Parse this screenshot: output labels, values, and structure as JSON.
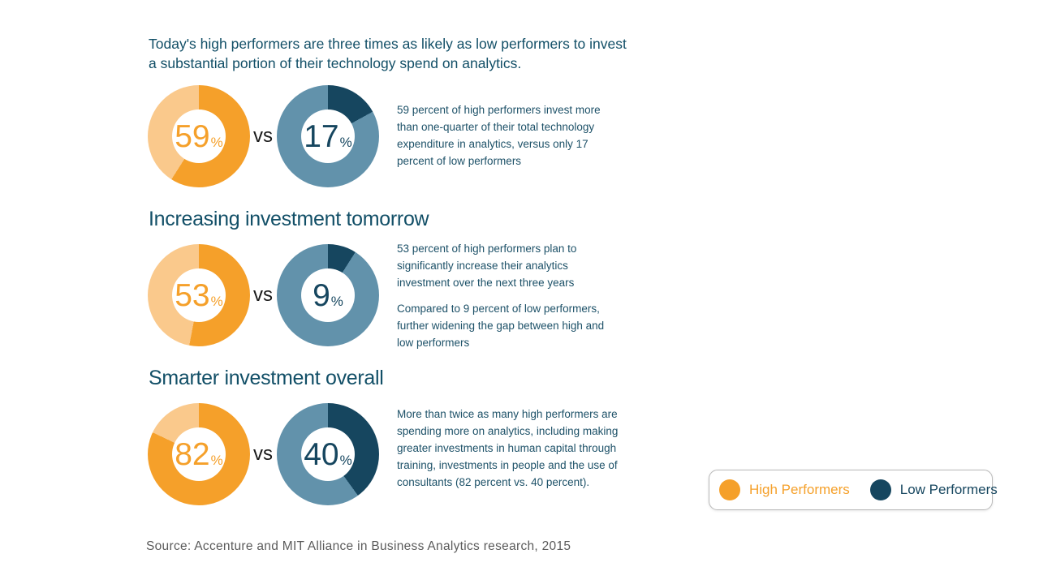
{
  "colors": {
    "high_performer": "#F5A02A",
    "high_performer_light": "#FAC98C",
    "low_performer": "#16465F",
    "low_performer_light": "#6292AB",
    "heading_text": "#124F67",
    "body_text": "#1D5168",
    "source_text": "#5B5B5B"
  },
  "title": "Today's high performers are three times as likely as low performers to invest a substantial portion of their technology spend on analytics.",
  "percent_sign": "%",
  "rows": [
    {
      "heading": null,
      "high_value": 59,
      "low_value": 17,
      "vs_label": "vs",
      "description": [
        "59 percent of high performers invest more than one-quarter of their total technology expenditure in analytics, versus only 17 percent of low performers"
      ]
    },
    {
      "heading": "Increasing investment tomorrow",
      "high_value": 53,
      "low_value": 9,
      "vs_label": "vs",
      "description": [
        "53 percent of high performers plan to significantly increase their analytics investment over the next three years",
        "Compared to 9 percent of low performers, further widening the gap between high and low performers"
      ]
    },
    {
      "heading": "Smarter investment overall",
      "high_value": 82,
      "low_value": 40,
      "vs_label": "vs",
      "description": [
        "More than twice as many high performers are spending more on analytics, including making greater investments in human capital through training, investments in people and the use of consultants (82 percent vs. 40 percent)."
      ]
    }
  ],
  "legend": {
    "high_label": "High Performers",
    "low_label": "Low Performers"
  },
  "source": "Source: Accenture and MIT Alliance in Business Analytics research, 2015",
  "chart_data": [
    {
      "type": "pie",
      "subtype": "donut-pair",
      "title": "Today's high performers are three times as likely as low performers to invest a substantial portion of their technology spend on analytics.",
      "unit": "%",
      "series": [
        {
          "name": "High Performers",
          "value": 59,
          "color": "#F5A02A",
          "remainder_color": "#FAC98C"
        },
        {
          "name": "Low Performers",
          "value": 17,
          "color": "#16465F",
          "remainder_color": "#6292AB"
        }
      ],
      "legend_position": "bottom-right",
      "start_angle": "top",
      "direction": "clockwise"
    },
    {
      "type": "pie",
      "subtype": "donut-pair",
      "title": "Increasing investment tomorrow",
      "unit": "%",
      "series": [
        {
          "name": "High Performers",
          "value": 53,
          "color": "#F5A02A",
          "remainder_color": "#FAC98C"
        },
        {
          "name": "Low Performers",
          "value": 9,
          "color": "#16465F",
          "remainder_color": "#6292AB"
        }
      ],
      "start_angle": "top",
      "direction": "clockwise"
    },
    {
      "type": "pie",
      "subtype": "donut-pair",
      "title": "Smarter investment overall",
      "unit": "%",
      "series": [
        {
          "name": "High Performers",
          "value": 82,
          "color": "#F5A02A",
          "remainder_color": "#FAC98C"
        },
        {
          "name": "Low Performers",
          "value": 40,
          "color": "#16465F",
          "remainder_color": "#6292AB"
        }
      ],
      "start_angle": "top",
      "direction": "clockwise"
    }
  ]
}
